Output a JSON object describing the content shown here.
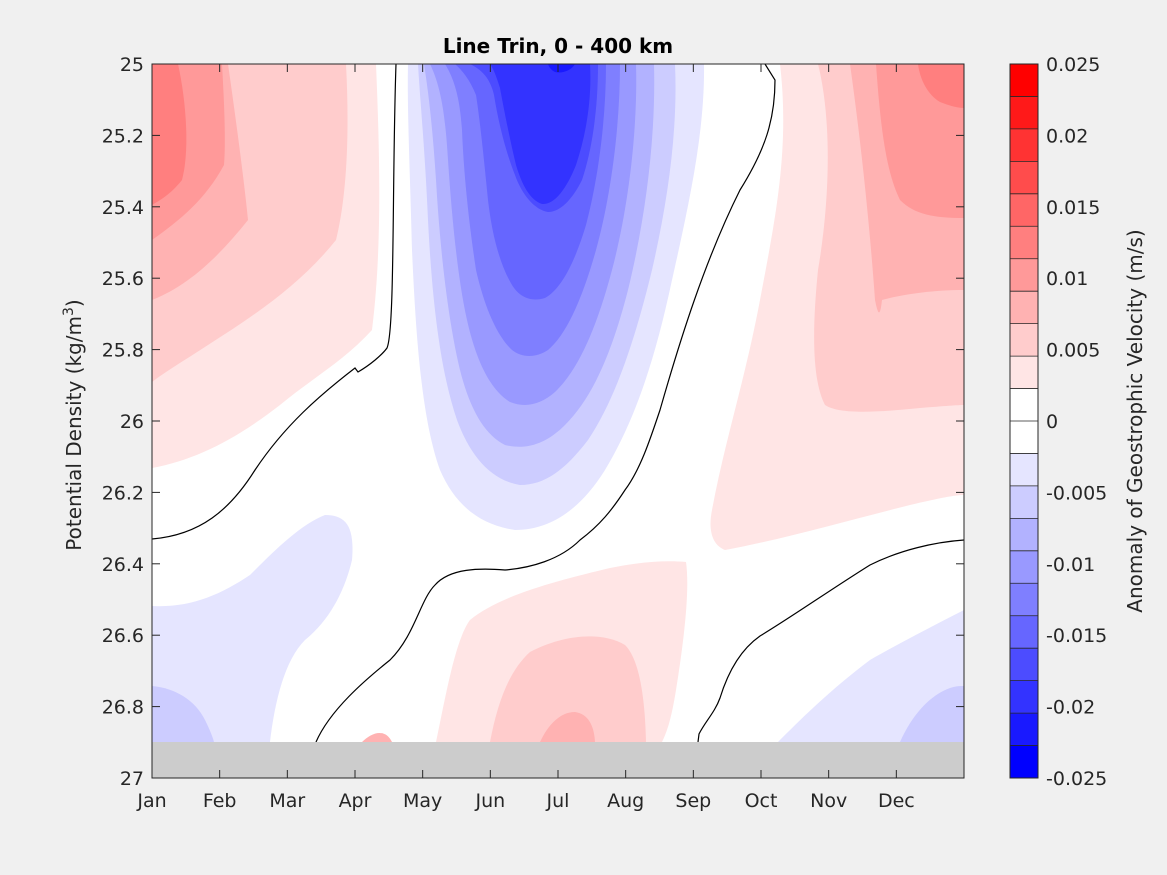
{
  "chart_data": {
    "type": "contourf",
    "title": "Line Trin, 0 - 400 km",
    "ylabel": "Potential Density (kg/m",
    "ylabel_sup": "3",
    "ylabel_close": ")",
    "xlim": [
      1,
      13
    ],
    "ylim": [
      25,
      27
    ],
    "y_reversed": true,
    "x_tick_values": [
      1,
      2,
      3,
      4,
      5,
      6,
      7,
      8,
      9,
      10,
      11,
      12
    ],
    "x_ticks": [
      "Jan",
      "Feb",
      "Mar",
      "Apr",
      "May",
      "Jun",
      "Jul",
      "Aug",
      "Sep",
      "Oct",
      "Nov",
      "Dec"
    ],
    "y_ticks": [
      "25",
      "25.2",
      "25.4",
      "25.6",
      "25.8",
      "26",
      "26.2",
      "26.4",
      "26.6",
      "26.8",
      "27"
    ],
    "y_tick_values": [
      25,
      25.2,
      25.4,
      25.6,
      25.8,
      26,
      26.2,
      26.4,
      26.6,
      26.8,
      27
    ],
    "no_data_band": [
      26.9,
      27
    ],
    "colorbar": {
      "label": "Anomaly of Geostrophic Velocity (m/s)",
      "range": [
        -0.025,
        0.025
      ],
      "tick_labels": [
        "0.025",
        "0.02",
        "0.015",
        "0.01",
        "0.005",
        "0",
        "-0.005",
        "-0.01",
        "-0.015",
        "-0.02",
        "-0.025"
      ],
      "tick_values": [
        0.025,
        0.02,
        0.015,
        0.01,
        0.005,
        0,
        -0.005,
        -0.01,
        -0.015,
        -0.02,
        -0.025
      ],
      "levels": [
        -0.025,
        -0.0225,
        -0.02,
        -0.0175,
        -0.015,
        -0.0125,
        -0.01,
        -0.0075,
        -0.005,
        -0.0025,
        0,
        0.0025,
        0.005,
        0.0075,
        0.01,
        0.0125,
        0.015,
        0.0175,
        0.02,
        0.0225,
        0.025
      ],
      "colors": [
        "#0000ff",
        "#1919ff",
        "#3333ff",
        "#4c4cff",
        "#6666ff",
        "#7f7fff",
        "#9999ff",
        "#b2b2ff",
        "#ccccff",
        "#e5e5ff",
        "#ffffff",
        "#ffffff",
        "#ffe5e5",
        "#ffcccc",
        "#ffb2b2",
        "#ff9999",
        "#ff7f7f",
        "#ff6666",
        "#ff4c4c",
        "#ff3333",
        "#ff1919",
        "#ff0000"
      ]
    },
    "zero_contour": true,
    "mask_color": "#cccccc"
  }
}
